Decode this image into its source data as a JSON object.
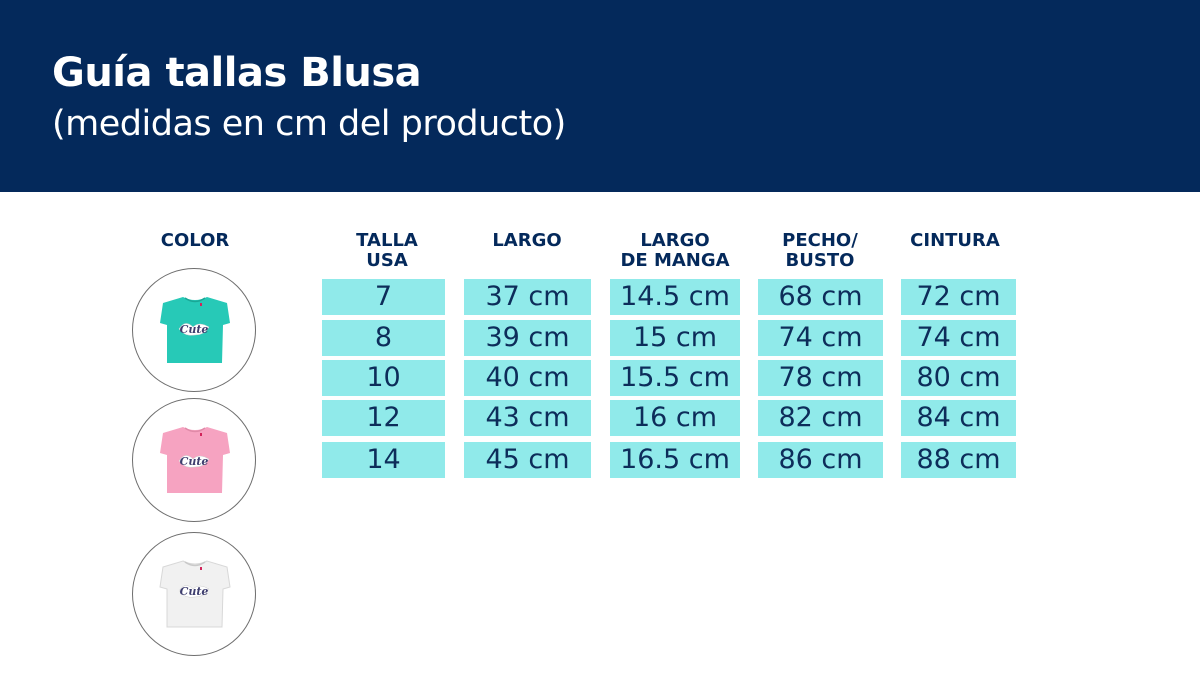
{
  "header": {
    "title": "Guía tallas Blusa",
    "subtitle": "(medidas en cm del producto)"
  },
  "colors": {
    "header_bg": "#04295b",
    "cell_bg": "#90eaea",
    "text_dark": "#04295b"
  },
  "color_column": {
    "label": "COLOR",
    "swatches": [
      {
        "name": "turquoise",
        "hex": "#27c9b7",
        "print": "Cute"
      },
      {
        "name": "pink",
        "hex": "#f6a3c1",
        "print": "Cute"
      },
      {
        "name": "white",
        "hex": "#f1f1f1",
        "print": "Cute"
      }
    ]
  },
  "table": {
    "headers": [
      "TALLA\nUSA",
      "LARGO",
      "LARGO\nDE MANGA",
      "PECHO/\nBUSTO",
      "CINTURA"
    ],
    "rows": [
      [
        "7",
        "37 cm",
        "14.5  cm",
        "68 cm",
        "72 cm"
      ],
      [
        "8",
        "39 cm",
        "15 cm",
        "74 cm",
        "74 cm"
      ],
      [
        "10",
        "40 cm",
        "15.5 cm",
        "78 cm",
        "80 cm"
      ],
      [
        "12",
        "43 cm",
        "16 cm",
        "82 cm",
        "84 cm"
      ],
      [
        "14",
        "45 cm",
        "16.5 cm",
        "86 cm",
        "88 cm"
      ]
    ]
  }
}
